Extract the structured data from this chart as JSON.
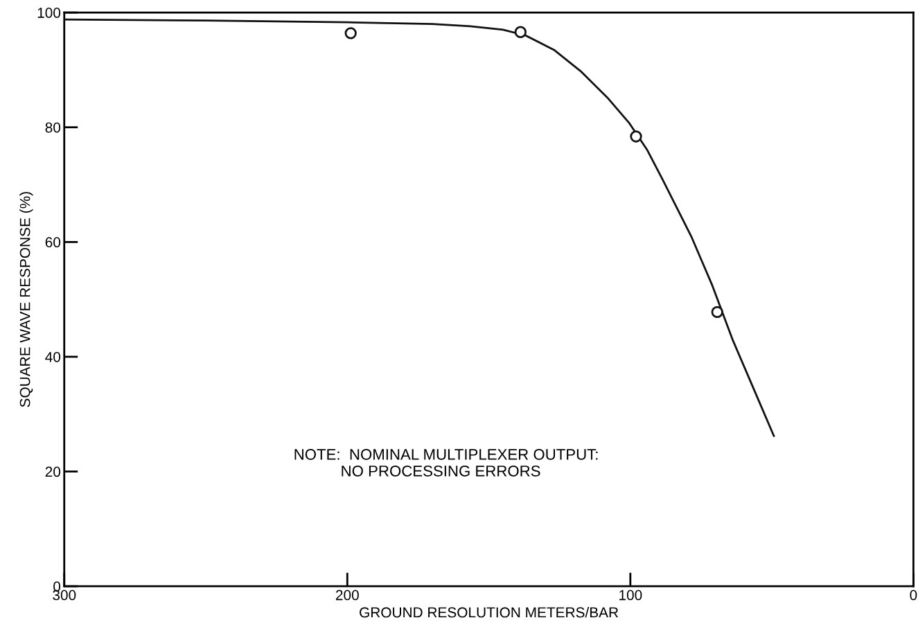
{
  "chart_data": {
    "type": "line",
    "xlabel": "GROUND RESOLUTION METERS/BAR",
    "ylabel": "SQUARE WAVE RESPONSE (%)",
    "xlim": [
      300,
      0
    ],
    "xticks": [
      300,
      200,
      100,
      0
    ],
    "ylim": [
      0,
      100
    ],
    "yticks": [
      0,
      20,
      40,
      60,
      80,
      100
    ],
    "grid": false,
    "legend": false,
    "annotations": [
      "NOTE:  NOMINAL MULTIPLEXER OUTPUT:\n           NO PROCESSING ERRORS"
    ],
    "series": [
      {
        "color": "#111111",
        "marker": "none",
        "line_style": "solid",
        "x": [
          300,
          250,
          200,
          170,
          156.6,
          145,
          137,
          127,
          117.6,
          107.8,
          100.5,
          94,
          88.3,
          78.5,
          71.2,
          63.9,
          56.6,
          49.3
        ],
        "values": [
          98.8,
          98.6,
          98.3,
          98.0,
          97.6,
          97.0,
          96.0,
          93.5,
          89.8,
          85,
          80.8,
          76,
          70.6,
          61,
          52.6,
          43,
          34.6,
          26.2
        ]
      },
      {
        "type": "scatter",
        "color": "#111111",
        "marker": "circle",
        "x": [
          198.8,
          138.8,
          98,
          69.3
        ],
        "values": [
          96.4,
          96.6,
          78.4,
          47.8
        ]
      }
    ]
  }
}
